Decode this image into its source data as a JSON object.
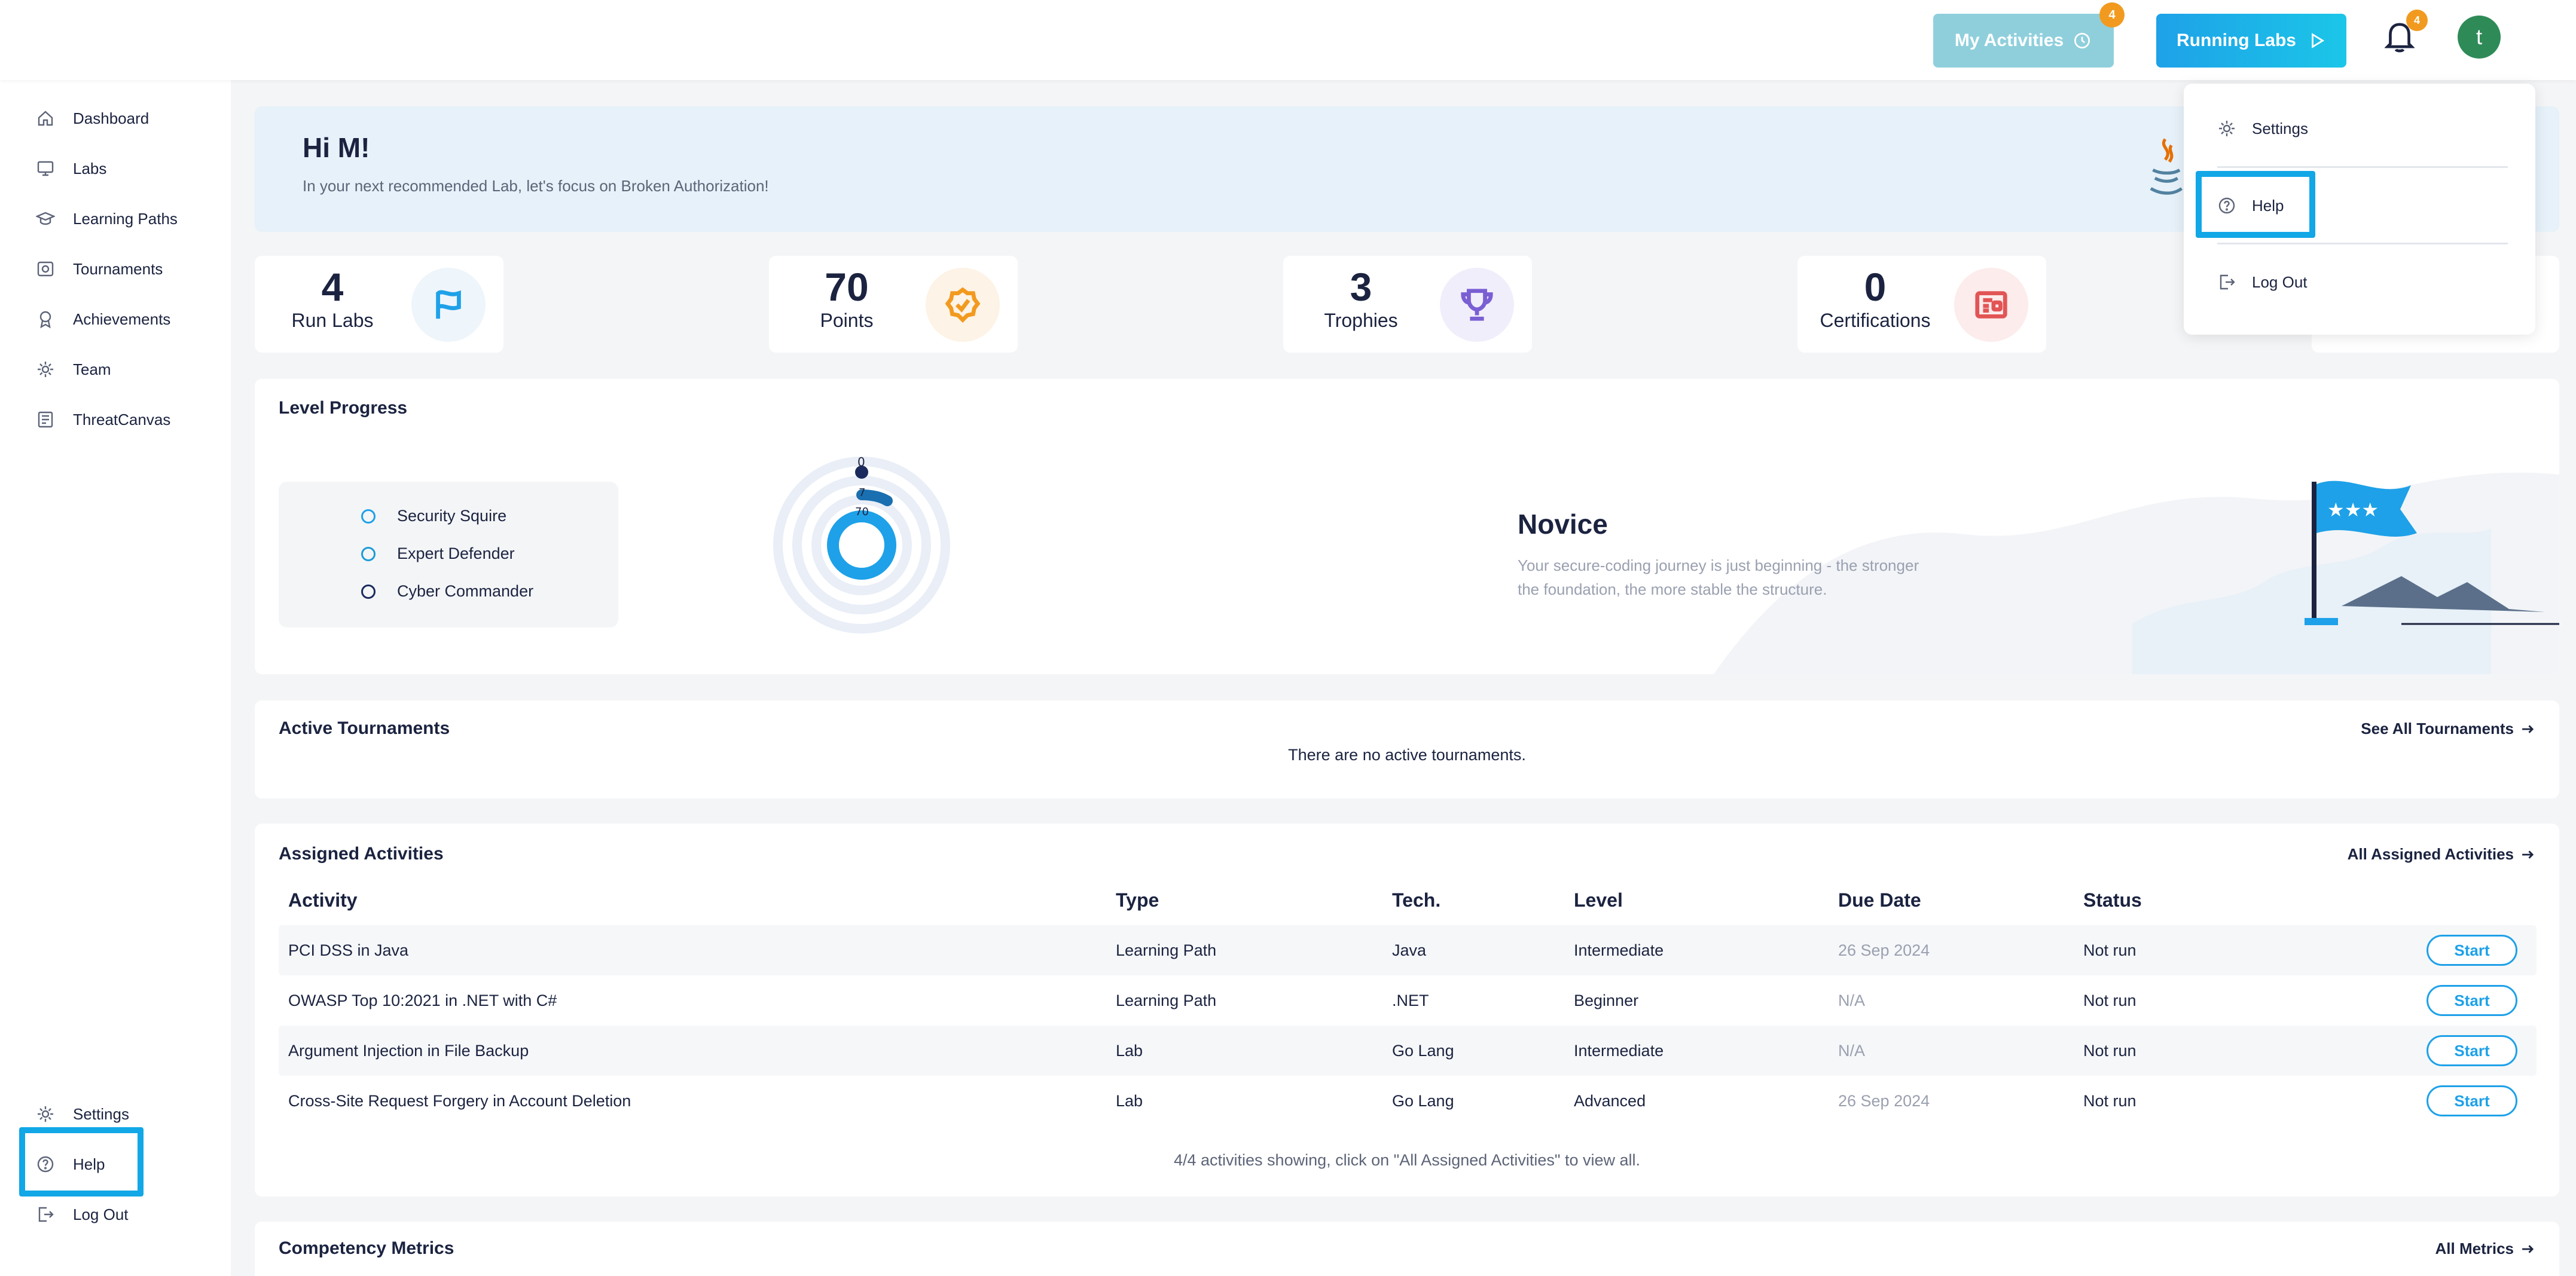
{
  "sidebar": {
    "items": [
      {
        "label": "Dashboard",
        "icon": "home-icon"
      },
      {
        "label": "Labs",
        "icon": "monitor-icon"
      },
      {
        "label": "Learning Paths",
        "icon": "graduation-cap-icon"
      },
      {
        "label": "Tournaments",
        "icon": "tournament-icon"
      },
      {
        "label": "Achievements",
        "icon": "medal-icon"
      },
      {
        "label": "Team",
        "icon": "gear-team-icon"
      },
      {
        "label": "ThreatCanvas",
        "icon": "canvas-icon"
      }
    ],
    "bottom_items": [
      {
        "label": "Settings",
        "icon": "gear-icon"
      },
      {
        "label": "Help",
        "icon": "help-circle-icon"
      },
      {
        "label": "Log Out",
        "icon": "logout-icon"
      }
    ]
  },
  "topbar": {
    "my_activities_label": "My Activities",
    "my_activities_badge": "4",
    "running_labs_label": "Running Labs",
    "notifications_badge": "4",
    "avatar_initial": "t"
  },
  "profile_menu": {
    "items": [
      {
        "label": "Settings",
        "icon": "gear-icon"
      },
      {
        "label": "Help",
        "icon": "help-circle-icon"
      },
      {
        "label": "Log Out",
        "icon": "logout-icon"
      }
    ]
  },
  "hero": {
    "greeting": "Hi M!",
    "subtitle": "In your next recommended Lab, let's focus on Broken Authorization!"
  },
  "stats": [
    {
      "value": "4",
      "label": "Run Labs",
      "icon": "flag-icon"
    },
    {
      "value": "70",
      "label": "Points",
      "icon": "badge-check-icon"
    },
    {
      "value": "3",
      "label": "Trophies",
      "icon": "trophy-icon"
    },
    {
      "value": "0",
      "label": "Certifications",
      "icon": "certificate-icon"
    }
  ],
  "level_progress": {
    "title": "Level Progress",
    "legend": [
      "Security Squire",
      "Expert Defender",
      "Cyber Commander"
    ],
    "ring_labels": [
      "0",
      "7",
      "70"
    ],
    "level_name": "Novice",
    "level_description": "Your secure-coding journey is just beginning - the stronger the foundation, the more stable the structure."
  },
  "active_tournaments": {
    "title": "Active Tournaments",
    "see_all": "See All Tournaments",
    "empty_message": "There are no active tournaments."
  },
  "assigned_activities": {
    "title": "Assigned Activities",
    "see_all": "All Assigned Activities",
    "columns": [
      "Activity",
      "Type",
      "Tech.",
      "Level",
      "Due Date",
      "Status"
    ],
    "rows": [
      {
        "activity": "PCI DSS in Java",
        "type": "Learning Path",
        "tech": "Java",
        "level": "Intermediate",
        "due": "26 Sep 2024",
        "status": "Not run",
        "action": "Start"
      },
      {
        "activity": "OWASP Top 10:2021 in .NET with C#",
        "type": "Learning Path",
        "tech": ".NET",
        "level": "Beginner",
        "due": "N/A",
        "status": "Not run",
        "action": "Start"
      },
      {
        "activity": "Argument Injection in File Backup",
        "type": "Lab",
        "tech": "Go Lang",
        "level": "Intermediate",
        "due": "N/A",
        "status": "Not run",
        "action": "Start"
      },
      {
        "activity": "Cross-Site Request Forgery in Account Deletion",
        "type": "Lab",
        "tech": "Go Lang",
        "level": "Advanced",
        "due": "26 Sep 2024",
        "status": "Not run",
        "action": "Start"
      }
    ],
    "footer": "4/4 activities showing, click on \"All Assigned Activities\" to view all."
  },
  "competency_metrics": {
    "title": "Competency Metrics",
    "see_all": "All Metrics"
  },
  "colors": {
    "accent": "#1ea1e8",
    "highlight": "#12a7e6",
    "badge": "#f29a1f",
    "avatar": "#2e8b57"
  }
}
